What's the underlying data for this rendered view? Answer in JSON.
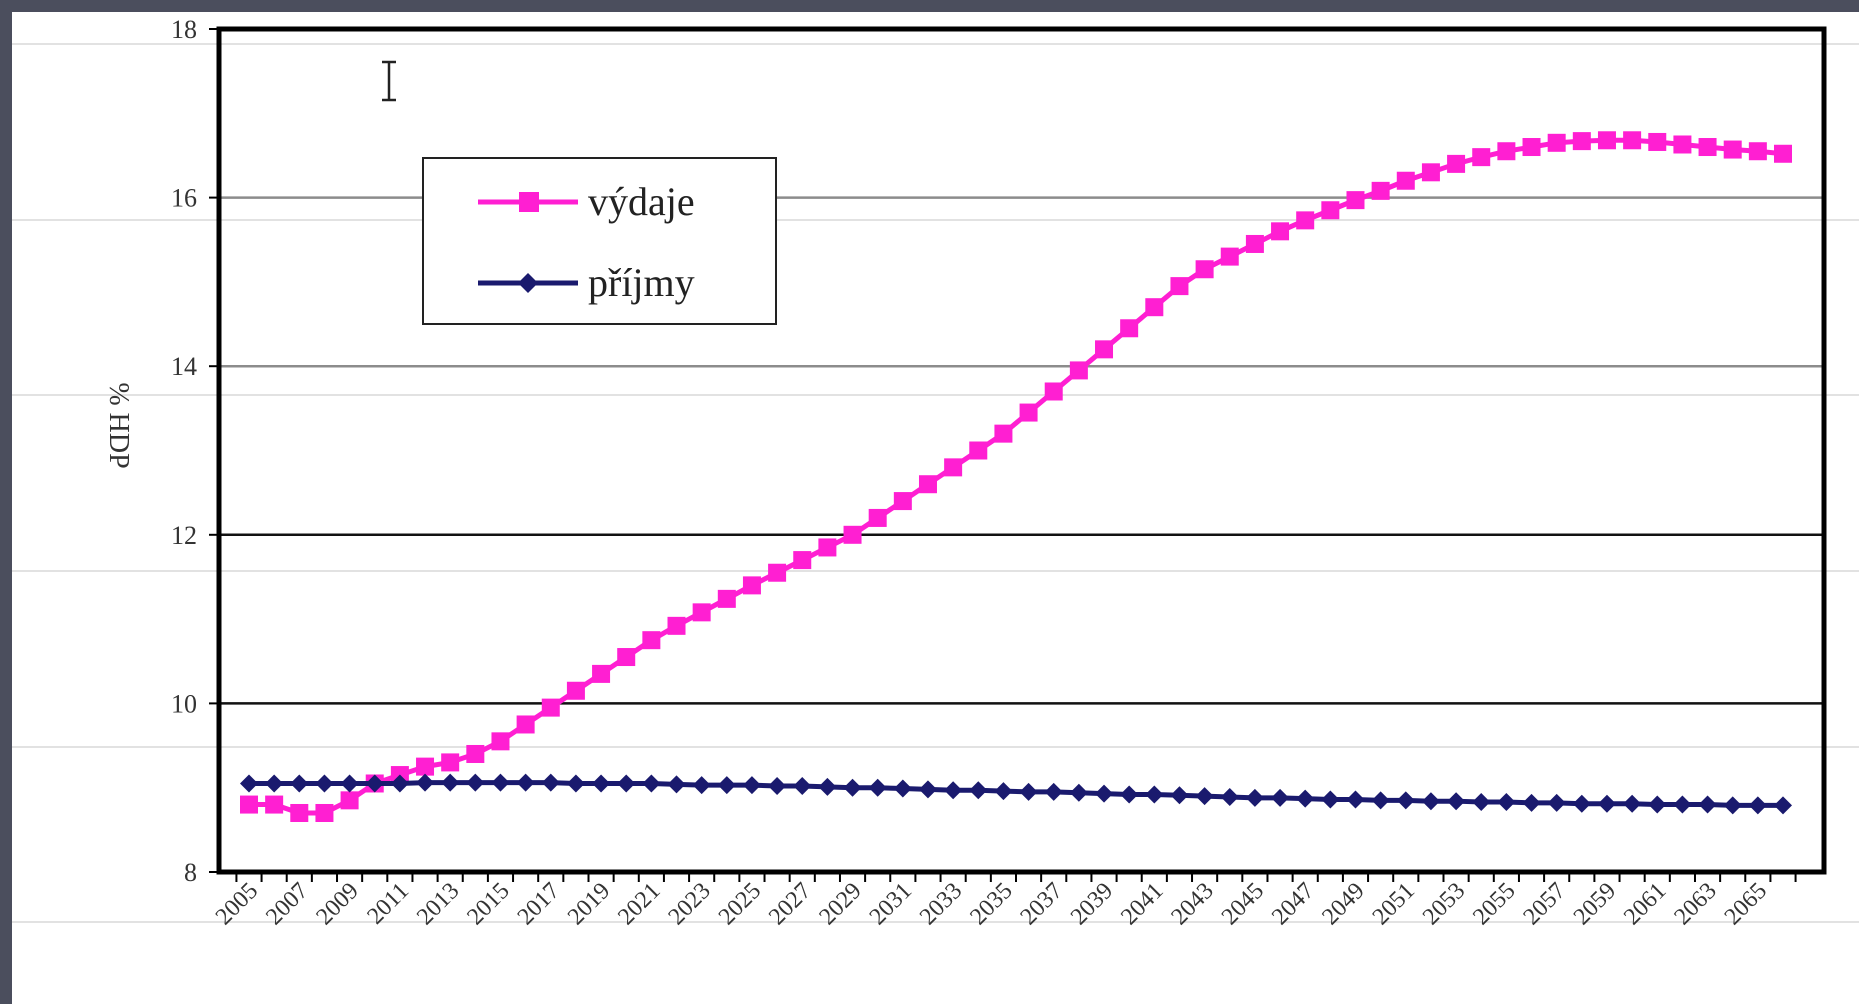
{
  "chart_data": {
    "type": "line",
    "ylabel": "% HDP",
    "xlabel": "",
    "ylim": [
      8,
      18
    ],
    "yticks": [
      8,
      10,
      12,
      14,
      16,
      18
    ],
    "x": [
      2005,
      2006,
      2007,
      2008,
      2009,
      2010,
      2011,
      2012,
      2013,
      2014,
      2015,
      2016,
      2017,
      2018,
      2019,
      2020,
      2021,
      2022,
      2023,
      2024,
      2025,
      2026,
      2027,
      2028,
      2029,
      2030,
      2031,
      2032,
      2033,
      2034,
      2035,
      2036,
      2037,
      2038,
      2039,
      2040,
      2041,
      2042,
      2043,
      2044,
      2045,
      2046,
      2047,
      2048,
      2049,
      2050,
      2051,
      2052,
      2053,
      2054,
      2055,
      2056,
      2057,
      2058,
      2059,
      2060,
      2061,
      2062,
      2063,
      2064,
      2065,
      2066
    ],
    "xtick_labels": [
      "2005",
      "2007",
      "2009",
      "2011",
      "2013",
      "2015",
      "2017",
      "2019",
      "2021",
      "2023",
      "2025",
      "2027",
      "2029",
      "2031",
      "2033",
      "2035",
      "2037",
      "2039",
      "2041",
      "2043",
      "2045",
      "2047",
      "2049",
      "2051",
      "2053",
      "2055",
      "2057",
      "2059",
      "2061",
      "2063",
      "2065"
    ],
    "series": [
      {
        "name": "výdaje",
        "color": "#ff1fd2",
        "marker": "square",
        "values": [
          8.8,
          8.8,
          8.7,
          8.7,
          8.85,
          9.05,
          9.15,
          9.25,
          9.3,
          9.4,
          9.55,
          9.75,
          9.95,
          10.15,
          10.35,
          10.55,
          10.75,
          10.92,
          11.08,
          11.24,
          11.4,
          11.55,
          11.7,
          11.85,
          12.0,
          12.2,
          12.4,
          12.6,
          12.8,
          13.0,
          13.2,
          13.45,
          13.7,
          13.95,
          14.2,
          14.45,
          14.7,
          14.95,
          15.15,
          15.3,
          15.45,
          15.6,
          15.73,
          15.85,
          15.97,
          16.08,
          16.2,
          16.3,
          16.4,
          16.48,
          16.55,
          16.6,
          16.65,
          16.67,
          16.68,
          16.68,
          16.66,
          16.63,
          16.6,
          16.57,
          16.55,
          16.52
        ]
      },
      {
        "name": "příjmy",
        "color": "#1a1a6e",
        "marker": "diamond",
        "values": [
          9.05,
          9.05,
          9.05,
          9.05,
          9.05,
          9.05,
          9.05,
          9.06,
          9.06,
          9.06,
          9.06,
          9.06,
          9.06,
          9.05,
          9.05,
          9.05,
          9.05,
          9.04,
          9.03,
          9.03,
          9.03,
          9.02,
          9.02,
          9.01,
          9.0,
          9.0,
          8.99,
          8.98,
          8.97,
          8.97,
          8.96,
          8.95,
          8.95,
          8.94,
          8.93,
          8.92,
          8.92,
          8.91,
          8.9,
          8.89,
          8.88,
          8.88,
          8.87,
          8.86,
          8.86,
          8.85,
          8.85,
          8.84,
          8.84,
          8.83,
          8.83,
          8.82,
          8.82,
          8.81,
          8.81,
          8.81,
          8.8,
          8.8,
          8.8,
          8.79,
          8.79,
          8.79
        ]
      }
    ],
    "grid": true,
    "legend_position": "top-left"
  }
}
